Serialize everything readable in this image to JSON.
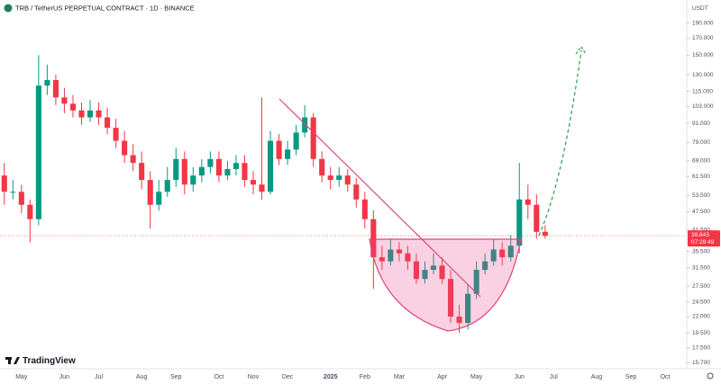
{
  "chart_data": {
    "type": "candlestick",
    "title": "TRB / TetherUS PERPETUAL CONTRACT · 1D · BINANCE",
    "currency": "USDT",
    "logo": "TradingView",
    "log_scale": true,
    "up_color": "#089981",
    "down_color": "#f23645",
    "categories": [
      null,
      null,
      "May",
      null,
      null,
      null,
      null,
      "Jun",
      null,
      null,
      null,
      "Jul",
      null,
      null,
      null,
      null,
      "Aug",
      null,
      null,
      null,
      "Sep",
      null,
      null,
      null,
      null,
      "Oct",
      null,
      null,
      null,
      "Nov",
      null,
      null,
      null,
      "Dec",
      null,
      null,
      null,
      null,
      "2025",
      null,
      null,
      null,
      "Feb",
      null,
      null,
      null,
      "Mar",
      null,
      null,
      null,
      null,
      "Apr",
      null,
      null,
      null,
      "May",
      null,
      null,
      null,
      null,
      "Jun",
      null,
      null,
      null,
      "Jul",
      null,
      null,
      null,
      null,
      "Aug",
      null,
      null,
      null,
      "Sep",
      null,
      null,
      null,
      "Oct",
      null,
      null
    ],
    "open": [
      62,
      55,
      55,
      50,
      45,
      120,
      125,
      110,
      105,
      100,
      95,
      100,
      95,
      88,
      80,
      72,
      68,
      60,
      50,
      55,
      60,
      70,
      58,
      62,
      66,
      70,
      62,
      65,
      68,
      60,
      58,
      55,
      80,
      70,
      75,
      85,
      95,
      70,
      62,
      60,
      62,
      58,
      52,
      45,
      34,
      33,
      36,
      35,
      33,
      29,
      31,
      32,
      29,
      22,
      21,
      26,
      31,
      33,
      36,
      34,
      37,
      52,
      50,
      41,
      null,
      null,
      null,
      null,
      null,
      null,
      null,
      null,
      null,
      null,
      null,
      null,
      null,
      null,
      null,
      null
    ],
    "high": [
      68,
      60,
      58,
      52,
      150,
      140,
      130,
      118,
      112,
      106,
      108,
      106,
      102,
      94,
      86,
      78,
      74,
      64,
      60,
      66,
      76,
      74,
      66,
      70,
      74,
      74,
      69,
      72,
      72,
      64,
      110,
      86,
      84,
      80,
      90,
      104,
      98,
      74,
      66,
      66,
      65,
      61,
      55,
      48,
      37,
      39,
      38,
      37,
      35,
      33,
      35,
      34,
      31,
      24,
      28,
      33,
      35,
      39,
      38,
      40,
      68,
      58,
      54,
      43,
      null,
      null,
      null,
      null,
      null,
      null,
      null,
      null,
      null,
      null,
      null,
      null,
      null,
      null,
      null,
      null
    ],
    "low": [
      50,
      52,
      47,
      38,
      43,
      112,
      104,
      98,
      95,
      90,
      92,
      90,
      84,
      76,
      68,
      64,
      56,
      42,
      48,
      53,
      57,
      54,
      55,
      59,
      63,
      59,
      60,
      62,
      57,
      54,
      52,
      54,
      67,
      67,
      72,
      82,
      66,
      59,
      56,
      57,
      55,
      49,
      42,
      27,
      31,
      32,
      33,
      31,
      28,
      28,
      30,
      28,
      21,
      19.5,
      20,
      25,
      30,
      32,
      32,
      33,
      35,
      45,
      39,
      39,
      null,
      null,
      null,
      null,
      null,
      null,
      null,
      null,
      null,
      null,
      null,
      null,
      null,
      null,
      null,
      null
    ],
    "close": [
      55,
      55,
      50,
      45,
      120,
      125,
      110,
      105,
      100,
      95,
      100,
      95,
      88,
      80,
      72,
      68,
      60,
      50,
      55,
      60,
      70,
      58,
      62,
      66,
      70,
      62,
      65,
      68,
      60,
      58,
      55,
      80,
      70,
      75,
      85,
      95,
      70,
      62,
      60,
      62,
      58,
      52,
      45,
      34,
      33,
      36,
      35,
      33,
      29,
      31,
      32,
      29,
      22,
      21,
      26,
      31,
      33,
      36,
      34,
      37,
      52,
      50,
      41,
      39.843,
      null,
      null,
      null,
      null,
      null,
      null,
      null,
      null,
      null,
      null,
      null,
      null,
      null,
      null,
      null,
      null
    ],
    "ylim": [
      15,
      225
    ],
    "yticks": [
      {
        "value": 190,
        "label": "190.000"
      },
      {
        "value": 170,
        "label": "170.000"
      },
      {
        "value": 150,
        "label": "150.000"
      },
      {
        "value": 130,
        "label": "130.000"
      },
      {
        "value": 115,
        "label": "115.000"
      },
      {
        "value": 103,
        "label": "103.000"
      },
      {
        "value": 91,
        "label": "91.000"
      },
      {
        "value": 79,
        "label": "79.000"
      },
      {
        "value": 69,
        "label": "69.000"
      },
      {
        "value": 61.5,
        "label": "61.500"
      },
      {
        "value": 53.5,
        "label": "53.500"
      },
      {
        "value": 47.5,
        "label": "47.500"
      },
      {
        "value": 41.5,
        "label": "41.500"
      },
      {
        "value": 35.5,
        "label": "35.500"
      },
      {
        "value": 31.5,
        "label": "31.500"
      },
      {
        "value": 27.5,
        "label": "27.500"
      },
      {
        "value": 24.5,
        "label": "24.500"
      },
      {
        "value": 22,
        "label": "22.000"
      },
      {
        "value": 19.5,
        "label": "19.500"
      },
      {
        "value": 17.5,
        "label": "17.500"
      },
      {
        "value": 15.7,
        "label": "15.700"
      }
    ],
    "last_price": {
      "value": 39.843,
      "label": "39.843"
    },
    "countdown": "07:29:49"
  }
}
